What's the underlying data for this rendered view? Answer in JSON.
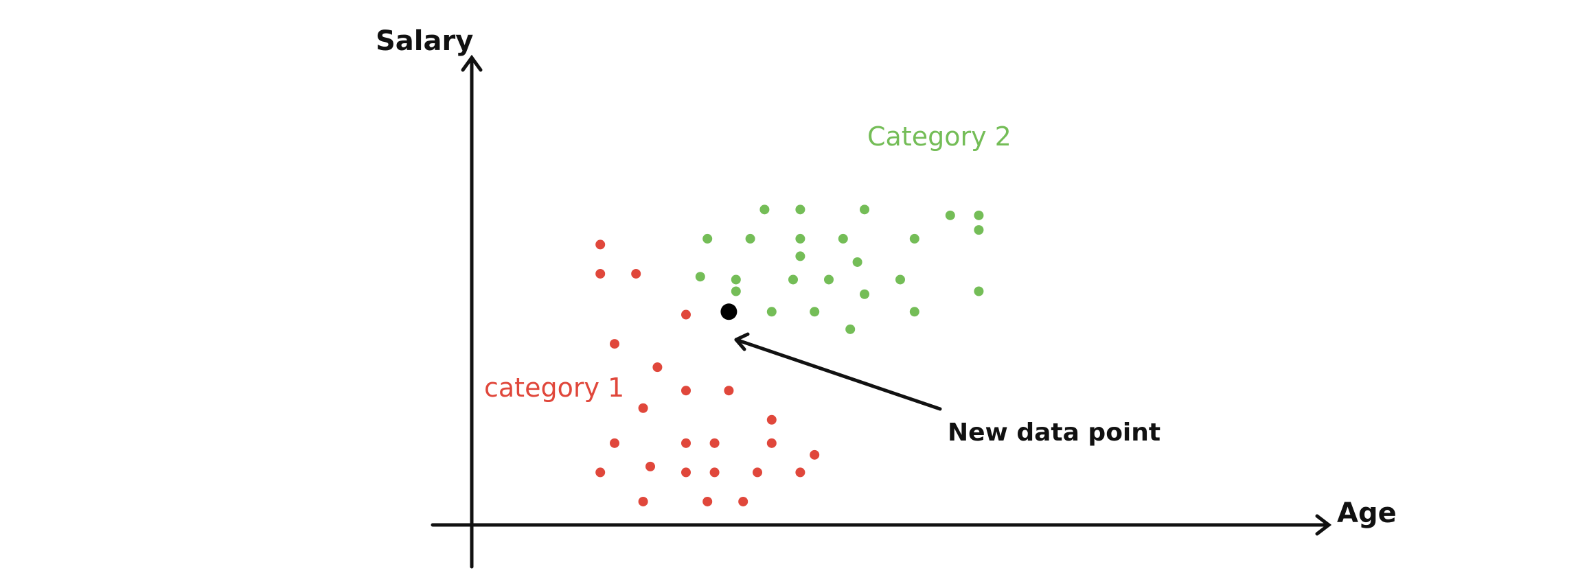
{
  "chart_data": {
    "type": "scatter",
    "xlabel": "Age",
    "ylabel": "Salary",
    "colors": {
      "category_1": "#e0473b",
      "category_2": "#74bd57",
      "new_point": "#000000",
      "axis": "#111111"
    },
    "series": [
      {
        "name": "category 1",
        "color": "#e0473b",
        "label_text": "category 1",
        "points": [
          {
            "x": 1.8,
            "y": 4.8
          },
          {
            "x": 1.8,
            "y": 4.3
          },
          {
            "x": 2.3,
            "y": 4.3
          },
          {
            "x": 3.0,
            "y": 3.6
          },
          {
            "x": 2.0,
            "y": 3.1
          },
          {
            "x": 2.6,
            "y": 2.7
          },
          {
            "x": 3.0,
            "y": 2.3
          },
          {
            "x": 3.6,
            "y": 2.3
          },
          {
            "x": 2.4,
            "y": 2.0
          },
          {
            "x": 4.2,
            "y": 1.8
          },
          {
            "x": 2.0,
            "y": 1.4
          },
          {
            "x": 3.0,
            "y": 1.4
          },
          {
            "x": 3.4,
            "y": 1.4
          },
          {
            "x": 4.2,
            "y": 1.4
          },
          {
            "x": 4.8,
            "y": 1.2
          },
          {
            "x": 2.5,
            "y": 1.0
          },
          {
            "x": 3.4,
            "y": 0.9
          },
          {
            "x": 1.8,
            "y": 0.9
          },
          {
            "x": 3.0,
            "y": 0.9
          },
          {
            "x": 4.0,
            "y": 0.9
          },
          {
            "x": 4.6,
            "y": 0.9
          },
          {
            "x": 2.4,
            "y": 0.4
          },
          {
            "x": 3.3,
            "y": 0.4
          },
          {
            "x": 3.8,
            "y": 0.4
          }
        ]
      },
      {
        "name": "Category 2",
        "color": "#74bd57",
        "label_text": "Category 2",
        "points": [
          {
            "x": 4.1,
            "y": 5.4
          },
          {
            "x": 4.6,
            "y": 5.4
          },
          {
            "x": 5.5,
            "y": 5.4
          },
          {
            "x": 6.7,
            "y": 5.3
          },
          {
            "x": 7.1,
            "y": 5.3
          },
          {
            "x": 7.1,
            "y": 5.05
          },
          {
            "x": 3.3,
            "y": 4.9
          },
          {
            "x": 3.9,
            "y": 4.9
          },
          {
            "x": 4.6,
            "y": 4.9
          },
          {
            "x": 5.2,
            "y": 4.9
          },
          {
            "x": 6.2,
            "y": 4.9
          },
          {
            "x": 5.4,
            "y": 4.5
          },
          {
            "x": 4.6,
            "y": 4.6
          },
          {
            "x": 3.2,
            "y": 4.25
          },
          {
            "x": 3.7,
            "y": 4.2
          },
          {
            "x": 4.5,
            "y": 4.2
          },
          {
            "x": 5.0,
            "y": 4.2
          },
          {
            "x": 6.0,
            "y": 4.2
          },
          {
            "x": 3.7,
            "y": 4.0
          },
          {
            "x": 5.5,
            "y": 3.95
          },
          {
            "x": 7.1,
            "y": 4.0
          },
          {
            "x": 4.2,
            "y": 3.65
          },
          {
            "x": 4.8,
            "y": 3.65
          },
          {
            "x": 6.2,
            "y": 3.65
          },
          {
            "x": 5.3,
            "y": 3.35
          }
        ]
      }
    ],
    "new_point": {
      "name": "New data point",
      "label_text": "New data point",
      "x": 3.6,
      "y": 3.65
    },
    "xlim": [
      0,
      12
    ],
    "ylim": [
      0,
      8
    ],
    "grid": false,
    "legend": false
  }
}
